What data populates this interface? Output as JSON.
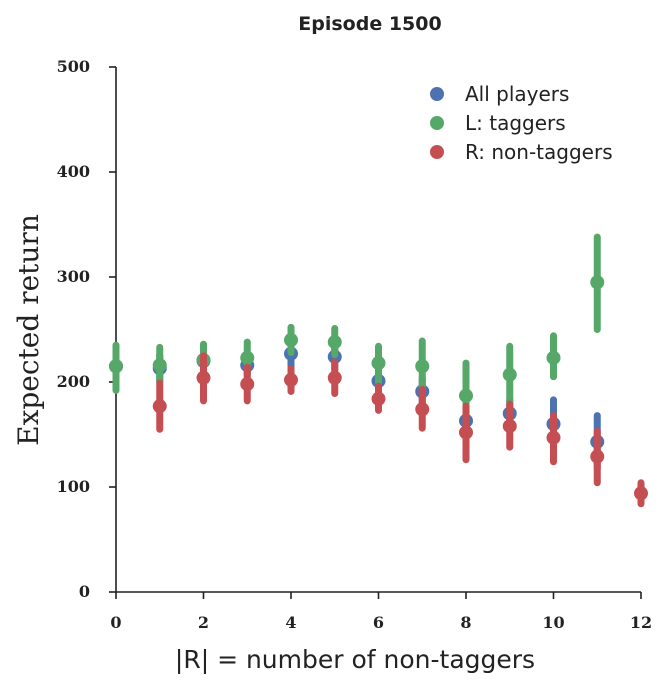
{
  "chart_data": {
    "type": "scatter",
    "title": "Episode 1500",
    "xlabel": "|R| =  number of non-taggers",
    "ylabel": "Expected return",
    "xlim": [
      0,
      12
    ],
    "ylim": [
      0,
      500
    ],
    "x_ticks": [
      "0",
      "2",
      "4",
      "6",
      "8",
      "10",
      "12"
    ],
    "y_ticks": [
      "0",
      "100",
      "200",
      "300",
      "400",
      "500"
    ],
    "grid": false,
    "legend_position": "top-right",
    "series": [
      {
        "name": "All players",
        "color": "#4c72b0",
        "points": [
          {
            "x": 0,
            "y": 215,
            "lo": 200,
            "hi": 230
          },
          {
            "x": 1,
            "y": 213,
            "lo": 200,
            "hi": 226
          },
          {
            "x": 2,
            "y": 220,
            "lo": 208,
            "hi": 232
          },
          {
            "x": 3,
            "y": 216,
            "lo": 206,
            "hi": 228
          },
          {
            "x": 4,
            "y": 227,
            "lo": 215,
            "hi": 240
          },
          {
            "x": 5,
            "y": 224,
            "lo": 212,
            "hi": 236
          },
          {
            "x": 6,
            "y": 201,
            "lo": 190,
            "hi": 212
          },
          {
            "x": 7,
            "y": 191,
            "lo": 178,
            "hi": 204
          },
          {
            "x": 8,
            "y": 163,
            "lo": 150,
            "hi": 177
          },
          {
            "x": 9,
            "y": 170,
            "lo": 157,
            "hi": 183
          },
          {
            "x": 10,
            "y": 160,
            "lo": 137,
            "hi": 183
          },
          {
            "x": 11,
            "y": 143,
            "lo": 118,
            "hi": 168
          }
        ]
      },
      {
        "name": "L: taggers",
        "color": "#55a868",
        "points": [
          {
            "x": 0,
            "y": 215,
            "lo": 192,
            "hi": 235
          },
          {
            "x": 1,
            "y": 216,
            "lo": 200,
            "hi": 233
          },
          {
            "x": 2,
            "y": 221,
            "lo": 208,
            "hi": 236
          },
          {
            "x": 3,
            "y": 223,
            "lo": 208,
            "hi": 238
          },
          {
            "x": 4,
            "y": 240,
            "lo": 228,
            "hi": 252
          },
          {
            "x": 5,
            "y": 238,
            "lo": 226,
            "hi": 251
          },
          {
            "x": 6,
            "y": 218,
            "lo": 200,
            "hi": 234
          },
          {
            "x": 7,
            "y": 215,
            "lo": 192,
            "hi": 239
          },
          {
            "x": 8,
            "y": 187,
            "lo": 160,
            "hi": 218
          },
          {
            "x": 9,
            "y": 207,
            "lo": 180,
            "hi": 234
          },
          {
            "x": 10,
            "y": 223,
            "lo": 205,
            "hi": 244
          },
          {
            "x": 11,
            "y": 295,
            "lo": 250,
            "hi": 338
          }
        ]
      },
      {
        "name": "R: non-taggers",
        "color": "#c44e52",
        "points": [
          {
            "x": 1,
            "y": 177,
            "lo": 155,
            "hi": 199
          },
          {
            "x": 2,
            "y": 204,
            "lo": 182,
            "hi": 225
          },
          {
            "x": 3,
            "y": 198,
            "lo": 182,
            "hi": 214
          },
          {
            "x": 4,
            "y": 202,
            "lo": 191,
            "hi": 213
          },
          {
            "x": 5,
            "y": 204,
            "lo": 189,
            "hi": 219
          },
          {
            "x": 6,
            "y": 184,
            "lo": 173,
            "hi": 196
          },
          {
            "x": 7,
            "y": 174,
            "lo": 156,
            "hi": 193
          },
          {
            "x": 8,
            "y": 152,
            "lo": 126,
            "hi": 177
          },
          {
            "x": 9,
            "y": 158,
            "lo": 138,
            "hi": 179
          },
          {
            "x": 10,
            "y": 147,
            "lo": 124,
            "hi": 168
          },
          {
            "x": 11,
            "y": 129,
            "lo": 104,
            "hi": 153
          },
          {
            "x": 12,
            "y": 94,
            "lo": 84,
            "hi": 104
          }
        ]
      }
    ]
  }
}
